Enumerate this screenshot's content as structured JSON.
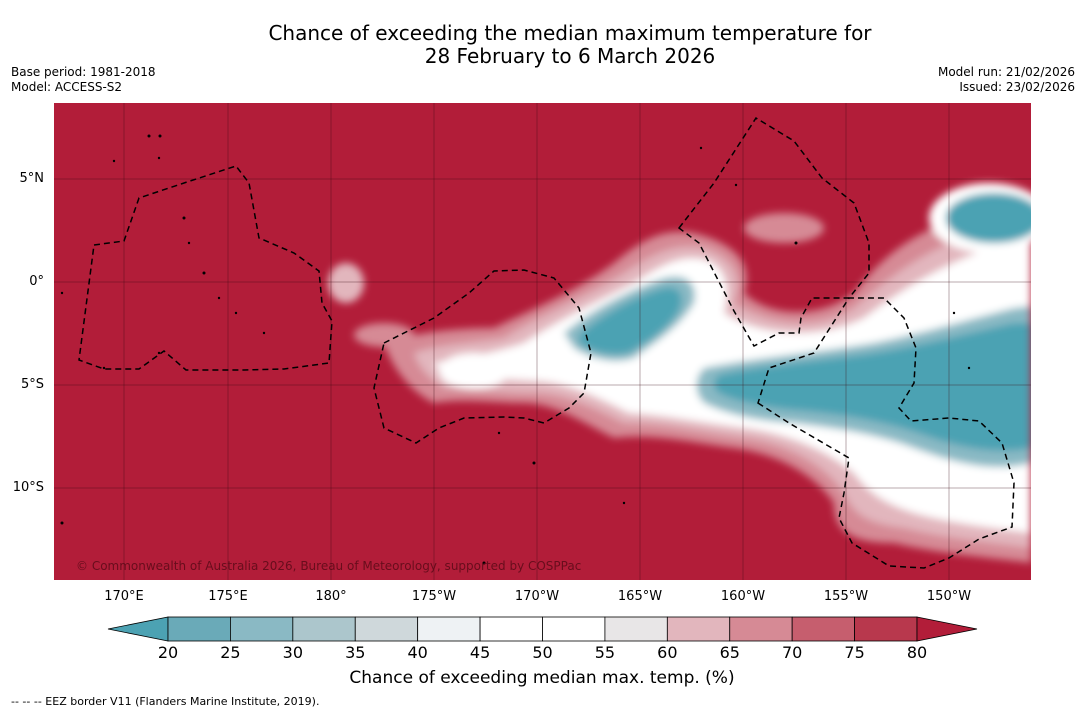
{
  "header": {
    "title_line1": "Chance of exceeding the median maximum temperature for",
    "title_line2": "28 February to 6 March 2026",
    "base_period": "Base period: 1981-2018",
    "model": "Model: ACCESS-S2",
    "model_run": "Model run: 21/02/2026",
    "issued": "Issued: 23/02/2026"
  },
  "map": {
    "copyright": "© Commonwealth of Australia 2026, Bureau of Meteorology, supported by COSPPac",
    "lat_labels": [
      "5°N",
      "0°",
      "5°S",
      "10°S"
    ],
    "lon_labels": [
      "170°E",
      "175°E",
      "180°",
      "175°W",
      "170°W",
      "165°W",
      "160°W",
      "155°W",
      "150°W"
    ],
    "background_color": "#b21d39"
  },
  "colorbar": {
    "ticks": [
      "20",
      "25",
      "30",
      "35",
      "40",
      "45",
      "50",
      "55",
      "60",
      "65",
      "70",
      "75",
      "80"
    ],
    "colors": [
      "#4ca2b3",
      "#6aaab8",
      "#8ab9c4",
      "#acc6cc",
      "#cfd8db",
      "#eef2f4",
      "#ffffff",
      "#ffffff",
      "#e8e6e7",
      "#e2b6bd",
      "#d68a95",
      "#c65e6e",
      "#b8384d",
      "#b21d39"
    ],
    "title": "Chance of exceeding median max. temp. (%)"
  },
  "footer": {
    "eez_note": "--  --  -- EEZ border V11 (Flanders Marine Institute, 2019)."
  }
}
